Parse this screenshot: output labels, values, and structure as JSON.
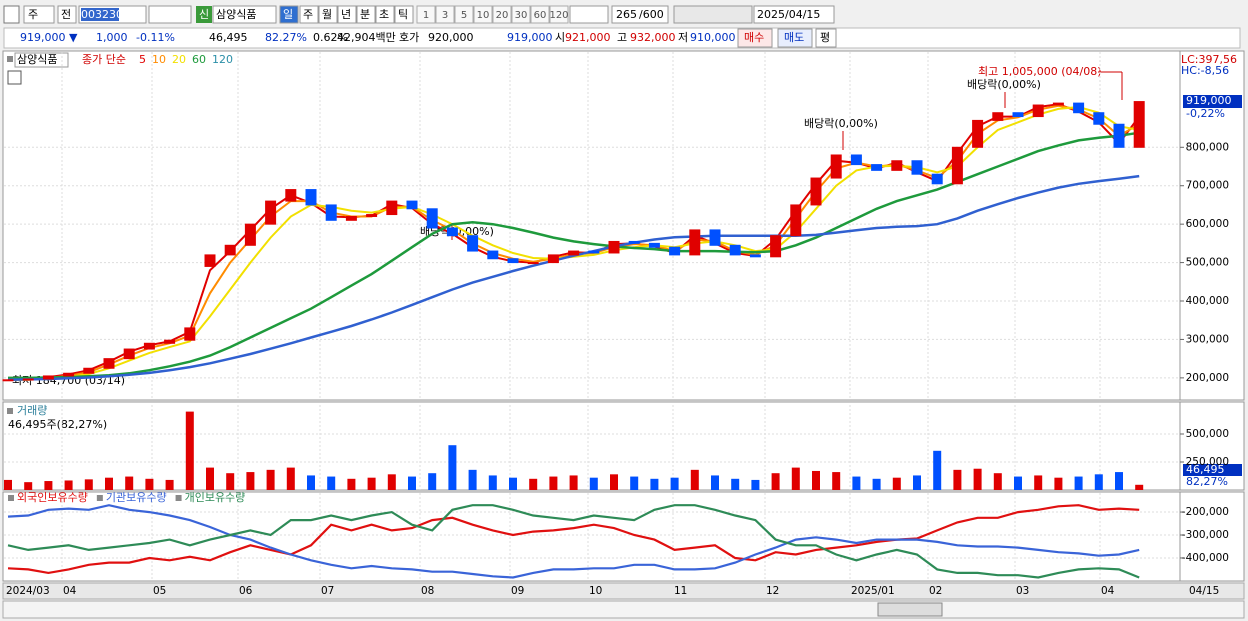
{
  "toolbar": {
    "period": "주",
    "prev": "전",
    "code": "003230",
    "credit": "신",
    "name": "삼양식품",
    "intervals": [
      "일",
      "주",
      "월",
      "년",
      "분",
      "초",
      "틱"
    ],
    "counts": [
      "1",
      "3",
      "5",
      "10",
      "20",
      "30",
      "60",
      "120"
    ],
    "shown": "265",
    "total": "/600",
    "date": "2025/04/15"
  },
  "info_bar": {
    "price": "919,000 ▼",
    "change": "1,000",
    "change_pct": "-0.11%",
    "volume": "46,495",
    "volume_ratio": "82.27%",
    "turnover": "0.62%",
    "amount": "42,904백만",
    "quote_label": "호가",
    "ask": "920,000",
    "bid": "919,000",
    "open_label": "시",
    "open": "921,000",
    "high_label": "고",
    "high": "932,000",
    "low_label": "저",
    "low": "910,000",
    "buy": "매수",
    "sell": "매도",
    "avg": "평"
  },
  "chart_data": [
    {
      "type": "candlestick",
      "legend_title": "삼양식품",
      "ma_label": "종가 단순",
      "open": [
        193000,
        195000,
        197000,
        205000,
        212000,
        225000,
        250000,
        275000,
        290000,
        298000,
        490000,
        520000,
        545000,
        600000,
        660000,
        690000,
        650000,
        610000,
        620000,
        625000,
        660000,
        640000,
        590000,
        570000,
        530000,
        510000,
        500000,
        500000,
        520000,
        530000,
        525000,
        555000,
        550000,
        540000,
        520000,
        585000,
        545000,
        520000,
        515000,
        570000,
        650000,
        720000,
        780000,
        755000,
        740000,
        765000,
        730000,
        705000,
        800000,
        870000,
        890000,
        880000,
        910000,
        915000,
        890000,
        860000,
        800000
      ],
      "close": [
        195000,
        197000,
        205000,
        212000,
        225000,
        250000,
        275000,
        290000,
        298000,
        330000,
        520000,
        545000,
        600000,
        660000,
        690000,
        650000,
        610000,
        620000,
        625000,
        660000,
        640000,
        590000,
        570000,
        530000,
        510000,
        500000,
        500000,
        520000,
        530000,
        525000,
        555000,
        550000,
        540000,
        520000,
        585000,
        545000,
        520000,
        515000,
        570000,
        650000,
        720000,
        780000,
        755000,
        740000,
        765000,
        730000,
        705000,
        800000,
        870000,
        890000,
        880000,
        910000,
        915000,
        890000,
        860000,
        800000,
        919000
      ],
      "series": [
        {
          "name": "5",
          "color": "#e00000",
          "values": [
            195000,
            196000,
            202000,
            209000,
            220000,
            242000,
            268000,
            285000,
            295000,
            320000,
            480000,
            530000,
            585000,
            640000,
            675000,
            655000,
            620000,
            618000,
            622000,
            652000,
            642000,
            600000,
            575000,
            540000,
            515000,
            503000,
            500000,
            515000,
            527000,
            525000,
            548000,
            550000,
            542000,
            525000,
            570000,
            550000,
            525000,
            517000,
            560000,
            635000,
            705000,
            765000,
            760000,
            745000,
            760000,
            735000,
            712000,
            785000,
            855000,
            880000,
            880000,
            905000,
            912000,
            893000,
            865000,
            810000,
            880000
          ]
        },
        {
          "name": "10",
          "color": "#ff8c00",
          "values": [
            195000,
            195000,
            200000,
            205000,
            215000,
            235000,
            258000,
            278000,
            290000,
            310000,
            420000,
            500000,
            560000,
            620000,
            660000,
            660000,
            630000,
            620000,
            620000,
            645000,
            645000,
            610000,
            585000,
            550000,
            525000,
            510000,
            502000,
            510000,
            522000,
            525000,
            540000,
            548000,
            545000,
            530000,
            560000,
            555000,
            530000,
            520000,
            545000,
            615000,
            685000,
            745000,
            760000,
            750000,
            755000,
            740000,
            720000,
            765000,
            835000,
            870000,
            878000,
            898000,
            908000,
            898000,
            875000,
            830000,
            860000
          ]
        },
        {
          "name": "20",
          "color": "#f2e000",
          "values": [
            195000,
            195000,
            198000,
            202000,
            210000,
            225000,
            245000,
            265000,
            280000,
            295000,
            360000,
            430000,
            500000,
            565000,
            620000,
            650000,
            645000,
            635000,
            630000,
            640000,
            645000,
            625000,
            600000,
            570000,
            545000,
            525000,
            512000,
            510000,
            515000,
            520000,
            532000,
            540000,
            545000,
            540000,
            550000,
            555000,
            545000,
            530000,
            535000,
            580000,
            640000,
            700000,
            740000,
            750000,
            752000,
            748000,
            735000,
            750000,
            800000,
            845000,
            865000,
            885000,
            900000,
            905000,
            890000,
            855000,
            845000
          ]
        },
        {
          "name": "60",
          "color": "#1e9a3c",
          "values": [
            200000,
            200000,
            201000,
            202000,
            204000,
            207000,
            212000,
            220000,
            230000,
            242000,
            258000,
            280000,
            305000,
            330000,
            355000,
            380000,
            410000,
            440000,
            470000,
            505000,
            540000,
            575000,
            600000,
            605000,
            600000,
            590000,
            578000,
            565000,
            555000,
            548000,
            542000,
            538000,
            535000,
            530000,
            530000,
            530000,
            528000,
            527000,
            530000,
            545000,
            565000,
            590000,
            615000,
            640000,
            660000,
            675000,
            690000,
            710000,
            730000,
            750000,
            770000,
            790000,
            805000,
            818000,
            825000,
            830000,
            838000
          ]
        },
        {
          "name": "120",
          "color": "#3060d0",
          "values": [
            195000,
            196000,
            197000,
            199000,
            201000,
            204000,
            208000,
            213000,
            220000,
            228000,
            238000,
            250000,
            262000,
            276000,
            290000,
            305000,
            320000,
            335000,
            352000,
            370000,
            390000,
            410000,
            430000,
            448000,
            463000,
            478000,
            492000,
            505000,
            518000,
            530000,
            542000,
            552000,
            560000,
            566000,
            568000,
            570000,
            570000,
            570000,
            570000,
            570000,
            572000,
            578000,
            584000,
            590000,
            593000,
            595000,
            600000,
            615000,
            635000,
            652000,
            668000,
            682000,
            695000,
            705000,
            712000,
            718000,
            725000
          ]
        }
      ],
      "up_color": "#e00000",
      "down_color": "#0050ff",
      "ylim": [
        145000,
        1048000
      ],
      "yticks": [
        {
          "value": 200000,
          "label": "200,000"
        },
        {
          "value": 300000,
          "label": "300,000"
        },
        {
          "value": 400000,
          "label": "400,000"
        },
        {
          "value": 500000,
          "label": "500,000"
        },
        {
          "value": 600000,
          "label": "600,000"
        },
        {
          "value": 700000,
          "label": "700,000"
        },
        {
          "value": 800000,
          "label": "800,000"
        }
      ],
      "grid": true,
      "annotations": {
        "high": "최고 1,005,000 (04/08)",
        "dividend_3": "배당락(0,00%)",
        "dividend_2": "배당락(0,00%)",
        "dividend_1": "배당락(0,00%)",
        "low": "최저 184,700 (03/14)"
      },
      "current": {
        "label": "919,000",
        "change": "-0,22%"
      },
      "lc": "LC:397,56",
      "hc": "HC:-8,56"
    },
    {
      "type": "bar",
      "title": "거래량",
      "subtitle": "46,495주(82,27%)",
      "values": [
        90000,
        70000,
        80000,
        85000,
        95000,
        110000,
        120000,
        100000,
        90000,
        700000,
        200000,
        150000,
        160000,
        180000,
        200000,
        130000,
        120000,
        100000,
        110000,
        140000,
        120000,
        150000,
        400000,
        180000,
        130000,
        110000,
        100000,
        120000,
        130000,
        110000,
        140000,
        120000,
        100000,
        110000,
        180000,
        130000,
        100000,
        90000,
        150000,
        200000,
        170000,
        160000,
        120000,
        100000,
        110000,
        130000,
        350000,
        180000,
        190000,
        150000,
        120000,
        130000,
        110000,
        120000,
        140000,
        160000,
        46495
      ],
      "ylim": [
        0,
        759000
      ],
      "yticks": [
        {
          "value": 250000,
          "label": "250,000"
        },
        {
          "value": 500000,
          "label": "500,000"
        }
      ],
      "grid": true,
      "current": {
        "label": "46,495",
        "ratio": "82,27%"
      }
    },
    {
      "type": "line",
      "series": [
        {
          "name": "외국인보유수량",
          "color": "#e01010",
          "values": [
            -445000,
            -450000,
            -465000,
            -450000,
            -430000,
            -420000,
            -420000,
            -400000,
            -410000,
            -395000,
            -410000,
            -375000,
            -345000,
            -365000,
            -385000,
            -345000,
            -255000,
            -280000,
            -255000,
            -280000,
            -270000,
            -235000,
            -225000,
            -255000,
            -280000,
            -300000,
            -285000,
            -280000,
            -270000,
            -255000,
            -270000,
            -300000,
            -320000,
            -365000,
            -355000,
            -345000,
            -400000,
            -410000,
            -375000,
            -385000,
            -365000,
            -355000,
            -345000,
            -330000,
            -320000,
            -315000,
            -280000,
            -245000,
            -225000,
            -225000,
            -200000,
            -190000,
            -175000,
            -170000,
            -190000,
            -185000,
            -190000
          ]
        },
        {
          "name": "기관보유수량",
          "color": "#3a64d8",
          "values": [
            -220000,
            -215000,
            -190000,
            -185000,
            -190000,
            -170000,
            -190000,
            -200000,
            -215000,
            -235000,
            -265000,
            -300000,
            -320000,
            -355000,
            -385000,
            -410000,
            -430000,
            -445000,
            -435000,
            -445000,
            -450000,
            -460000,
            -460000,
            -470000,
            -480000,
            -485000,
            -465000,
            -450000,
            -450000,
            -445000,
            -445000,
            -430000,
            -430000,
            -450000,
            -450000,
            -445000,
            -420000,
            -385000,
            -355000,
            -320000,
            -310000,
            -320000,
            -335000,
            -320000,
            -320000,
            -320000,
            -330000,
            -345000,
            -350000,
            -350000,
            -355000,
            -365000,
            -375000,
            -380000,
            -390000,
            -385000,
            -365000
          ]
        },
        {
          "name": "개인보유수량",
          "color": "#2e8b57",
          "values": [
            -345000,
            -365000,
            -355000,
            -345000,
            -365000,
            -355000,
            -345000,
            -335000,
            -320000,
            -345000,
            -320000,
            -300000,
            -280000,
            -300000,
            -235000,
            -235000,
            -215000,
            -235000,
            -215000,
            -200000,
            -255000,
            -280000,
            -190000,
            -170000,
            -170000,
            -190000,
            -215000,
            -225000,
            -235000,
            -215000,
            -225000,
            -235000,
            -190000,
            -170000,
            -170000,
            -190000,
            -215000,
            -235000,
            -320000,
            -345000,
            -345000,
            -385000,
            -410000,
            -385000,
            -365000,
            -385000,
            -450000,
            -465000,
            -465000,
            -475000,
            -475000,
            -485000,
            -465000,
            -450000,
            -445000,
            -450000,
            -485000
          ]
        }
      ],
      "ylim": [
        -496000,
        -117000
      ],
      "yticks": [
        {
          "value": -400000,
          "label": "-400,000"
        },
        {
          "value": -300000,
          "label": "-300,000"
        },
        {
          "value": -200000,
          "label": "-200,000"
        }
      ],
      "grid": true
    }
  ],
  "time_axis": [
    "2024/03",
    "04",
    "05",
    "06",
    "07",
    "08",
    "09",
    "10",
    "11",
    "12",
    "2025/01",
    "02",
    "03",
    "04",
    "04/15"
  ]
}
